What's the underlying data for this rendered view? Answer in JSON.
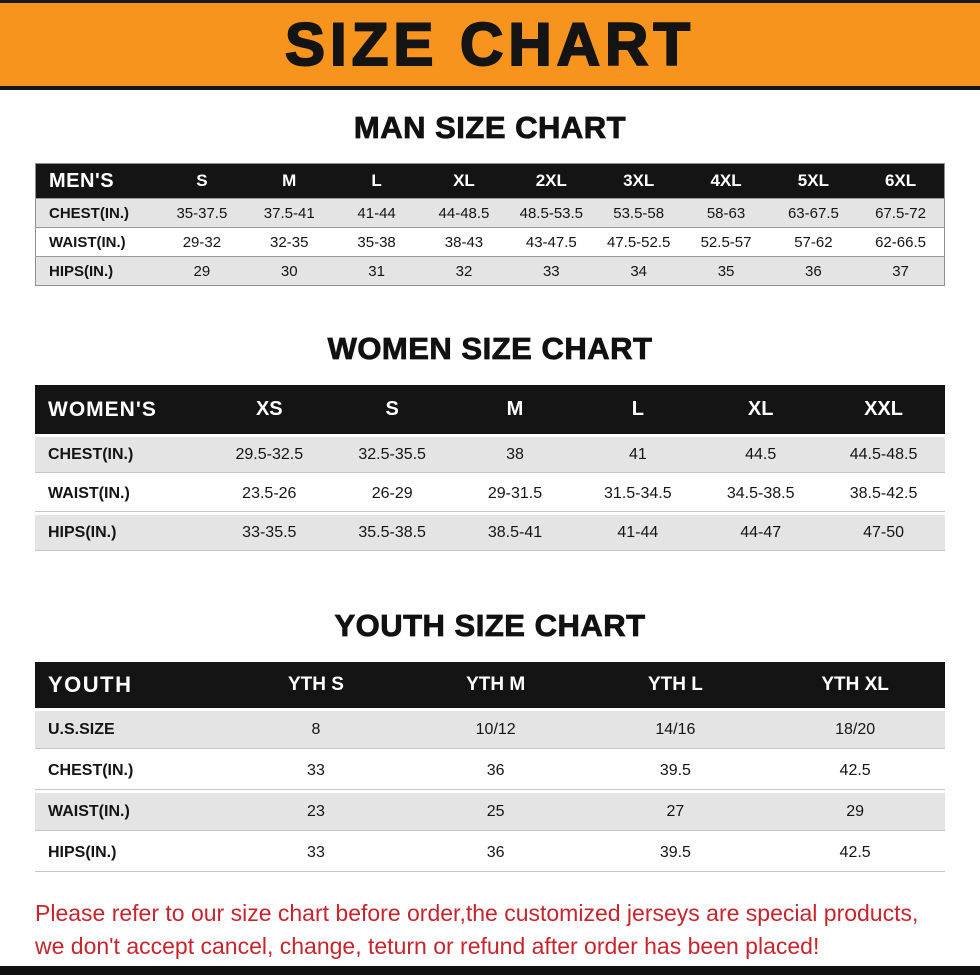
{
  "banner": {
    "title": "SIZE CHART",
    "bg_color": "#f7941d",
    "text_color": "#141414"
  },
  "colors": {
    "table_header_bg": "#141414",
    "table_header_text": "#ffffff",
    "row_stripe_gray": "#e4e4e4",
    "footer_red": "#c9242b"
  },
  "sections": [
    {
      "title": "MAN SIZE CHART",
      "table": {
        "header": [
          "MEN'S",
          "S",
          "M",
          "L",
          "XL",
          "2XL",
          "3XL",
          "4XL",
          "5XL",
          "6XL"
        ],
        "rows": [
          [
            "CHEST(IN.)",
            "35-37.5",
            "37.5-41",
            "41-44",
            "44-48.5",
            "48.5-53.5",
            "53.5-58",
            "58-63",
            "63-67.5",
            "67.5-72"
          ],
          [
            "WAIST(IN.)",
            "29-32",
            "32-35",
            "35-38",
            "38-43",
            "43-47.5",
            "47.5-52.5",
            "52.5-57",
            "57-62",
            "62-66.5"
          ],
          [
            "HIPS(IN.)",
            "29",
            "30",
            "31",
            "32",
            "33",
            "34",
            "35",
            "36",
            "37"
          ]
        ]
      }
    },
    {
      "title": "WOMEN SIZE CHART",
      "table": {
        "header": [
          "WOMEN'S",
          "XS",
          "S",
          "M",
          "L",
          "XL",
          "XXL"
        ],
        "rows": [
          [
            "CHEST(IN.)",
            "29.5-32.5",
            "32.5-35.5",
            "38",
            "41",
            "44.5",
            "44.5-48.5"
          ],
          [
            "WAIST(IN.)",
            "23.5-26",
            "26-29",
            "29-31.5",
            "31.5-34.5",
            "34.5-38.5",
            "38.5-42.5"
          ],
          [
            "HIPS(IN.)",
            "33-35.5",
            "35.5-38.5",
            "38.5-41",
            "41-44",
            "44-47",
            "47-50"
          ]
        ]
      }
    },
    {
      "title": "YOUTH SIZE CHART",
      "table": {
        "header": [
          "YOUTH",
          "YTH S",
          "YTH M",
          "YTH L",
          "YTH XL"
        ],
        "rows": [
          [
            "U.S.SIZE",
            "8",
            "10/12",
            "14/16",
            "18/20"
          ],
          [
            "CHEST(IN.)",
            "33",
            "36",
            "39.5",
            "42.5"
          ],
          [
            "WAIST(IN.)",
            "23",
            "25",
            "27",
            "29"
          ],
          [
            "HIPS(IN.)",
            "33",
            "36",
            "39.5",
            "42.5"
          ]
        ]
      }
    }
  ],
  "footer": {
    "lines": [
      "Please refer to our size chart before order,the customized jerseys are special products,",
      "we don't accept cancel, change, teturn or refund after order has been placed!"
    ]
  }
}
